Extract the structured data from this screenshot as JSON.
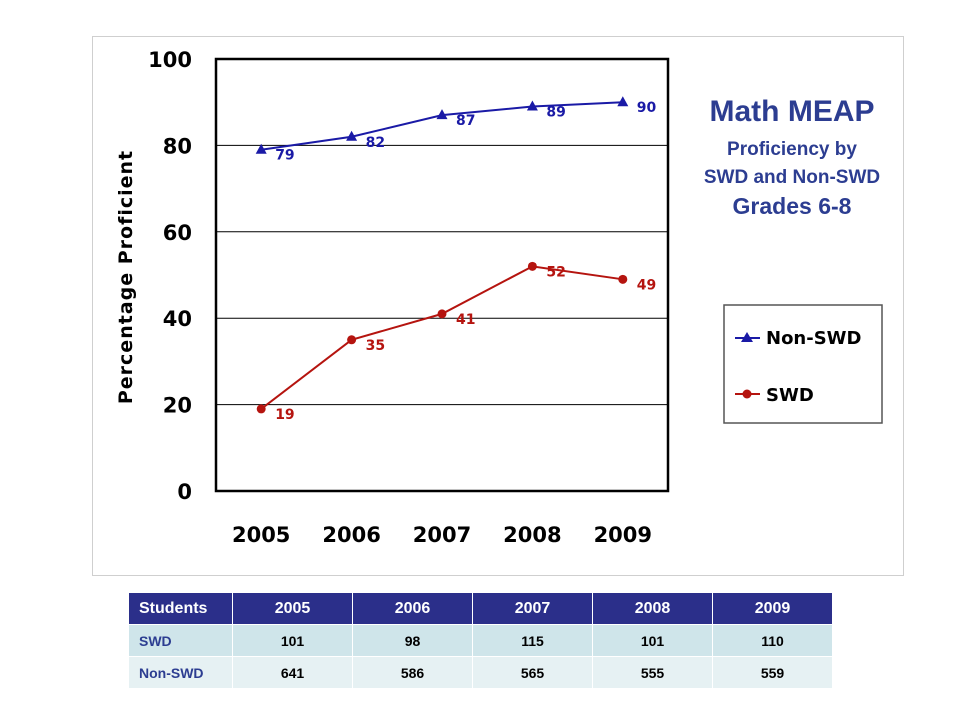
{
  "chart_data": {
    "type": "line",
    "title": "Math MEAP",
    "subtitle_lines": [
      "Proficiency by",
      "SWD and Non-SWD",
      "Grades 6-8"
    ],
    "ylabel": "Percentage Proficient",
    "xlabel": "",
    "x": [
      "2005",
      "2006",
      "2007",
      "2008",
      "2009"
    ],
    "ylim": [
      0,
      100
    ],
    "yticks": [
      0,
      20,
      40,
      60,
      80,
      100
    ],
    "grid": true,
    "legend_position": "right",
    "series": [
      {
        "name": "Non-SWD",
        "values": [
          79,
          82,
          87,
          89,
          90
        ],
        "color": "#1a1aa6",
        "marker": "triangle"
      },
      {
        "name": "SWD",
        "values": [
          19,
          35,
          41,
          52,
          49
        ],
        "color": "#b5140f",
        "marker": "circle"
      }
    ]
  },
  "table": {
    "headers": [
      "Students",
      "2005",
      "2006",
      "2007",
      "2008",
      "2009"
    ],
    "rows": [
      {
        "label": "SWD",
        "values": [
          "101",
          "98",
          "115",
          "101",
          "110"
        ]
      },
      {
        "label": "Non-SWD",
        "values": [
          "641",
          "586",
          "565",
          "555",
          "559"
        ]
      }
    ]
  },
  "colors": {
    "header_bg": "#2b2f8a",
    "row_bg": "#cfe5ea",
    "title": "#2c3d91"
  }
}
